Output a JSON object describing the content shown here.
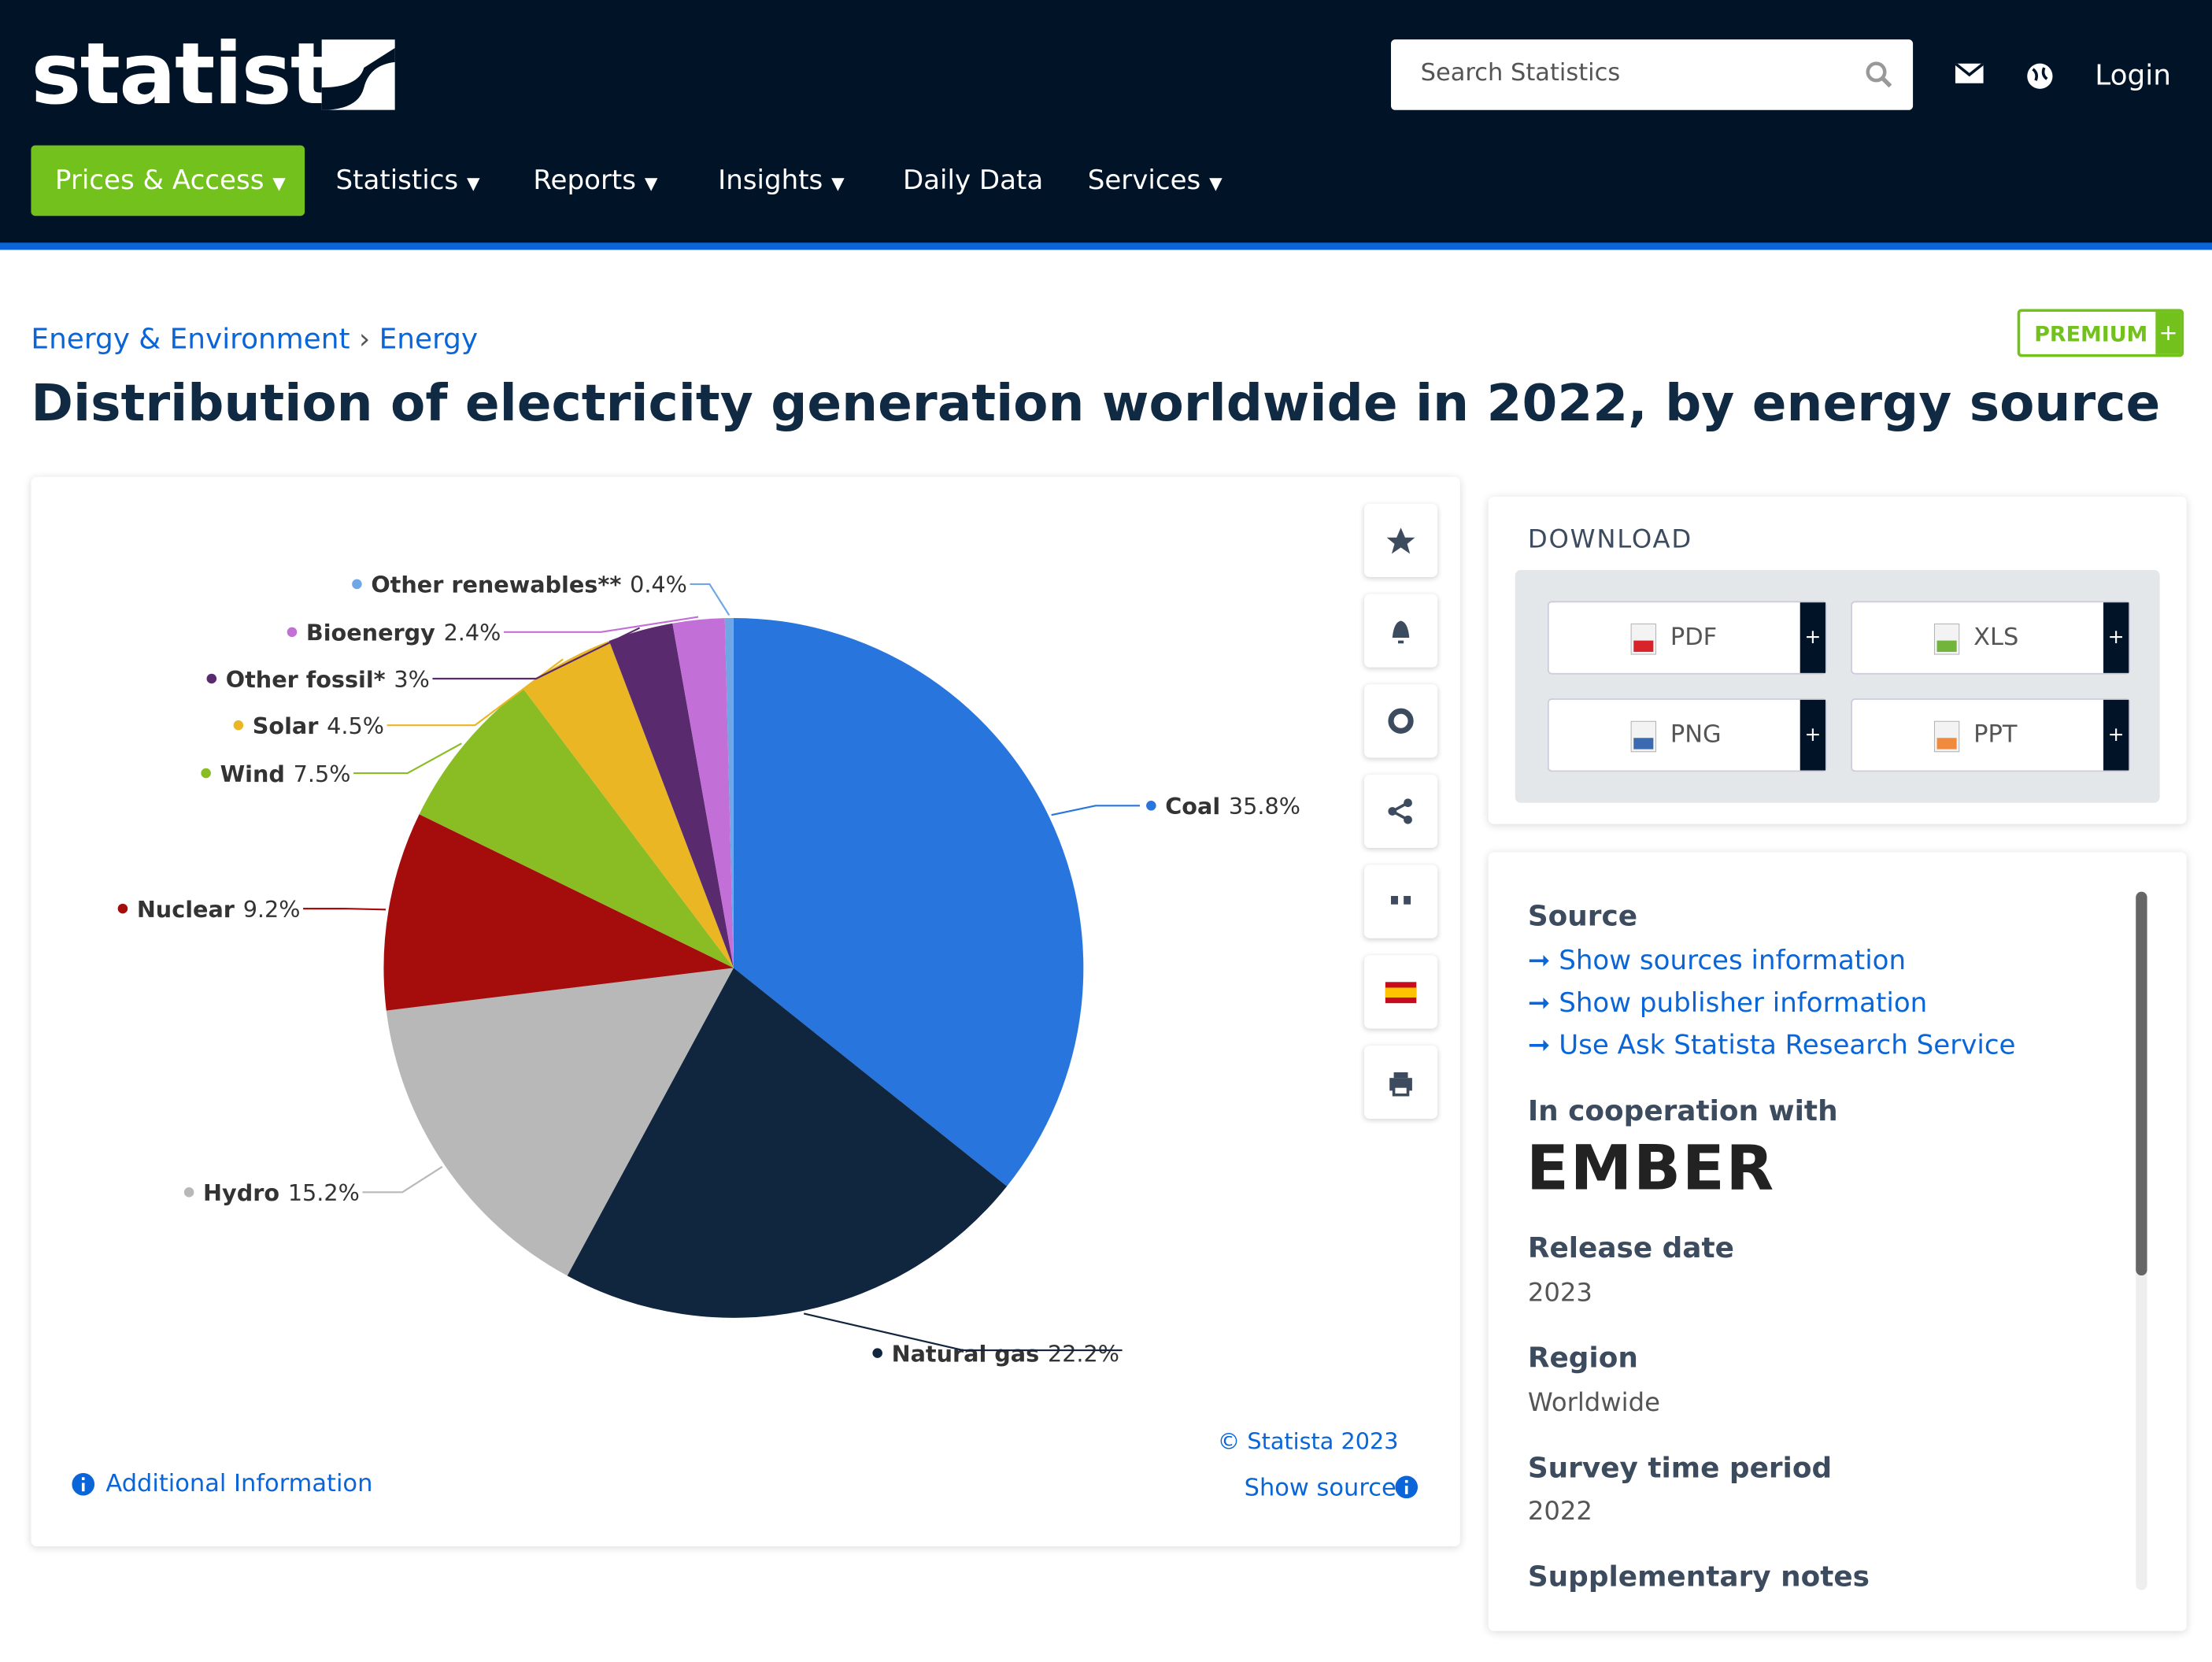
{
  "header": {
    "logo": "statista",
    "search_placeholder": "Search Statistics",
    "login": "Login",
    "nav": [
      "Prices & Access",
      "Statistics",
      "Reports",
      "Insights",
      "Daily Data",
      "Services"
    ]
  },
  "breadcrumb": [
    "Energy & Environment",
    "Energy"
  ],
  "badge": "PREMIUM",
  "chart_data": {
    "type": "pie",
    "title": "Distribution of electricity generation worldwide in 2022, by energy source",
    "categories": [
      "Coal",
      "Natural gas",
      "Hydro",
      "Nuclear",
      "Wind",
      "Solar",
      "Other fossil*",
      "Bioenergy",
      "Other renewables**"
    ],
    "values": [
      35.8,
      22.2,
      15.2,
      9.2,
      7.5,
      4.5,
      3,
      2.4,
      0.4
    ],
    "value_labels": [
      "35.8%",
      "22.2%",
      "15.2%",
      "9.2%",
      "7.5%",
      "4.5%",
      "3%",
      "2.4%",
      "0.4%"
    ],
    "colors": [
      "#2876dd",
      "#10253e",
      "#b8b8b8",
      "#a50c0c",
      "#8abd24",
      "#ebb624",
      "#5a2a6e",
      "#c270d8",
      "#6fa6e6"
    ]
  },
  "chart_footer": {
    "copyright": "© Statista 2023",
    "show_source": "Show source",
    "additional_info": "Additional Information"
  },
  "download": {
    "title": "DOWNLOAD",
    "formats": [
      "PDF",
      "XLS",
      "PNG",
      "PPT"
    ]
  },
  "sidebar": {
    "source_title": "Source",
    "links": [
      "Show sources information",
      "Show publisher information",
      "Use Ask Statista Research Service"
    ],
    "cooperation_title": "In cooperation with",
    "cooperation_logo": "EMBER",
    "release_title": "Release date",
    "release": "2023",
    "region_title": "Region",
    "region": "Worldwide",
    "period_title": "Survey time period",
    "period": "2022",
    "notes_title": "Supplementary notes"
  }
}
